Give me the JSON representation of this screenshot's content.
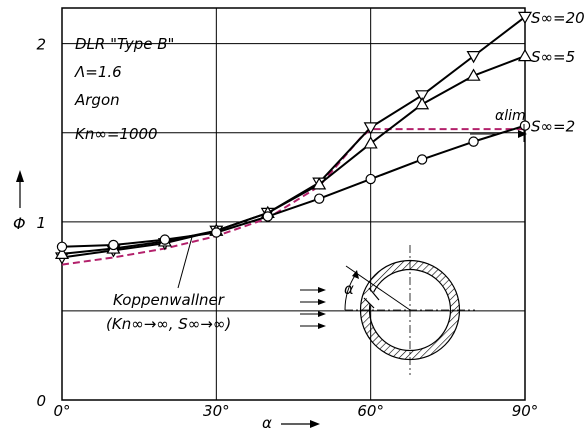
{
  "chart_data": {
    "type": "line",
    "xlabel": "α",
    "ylabel": "Φ",
    "xlim": [
      0,
      90
    ],
    "ylim": [
      0,
      2.2
    ],
    "grid": true,
    "x_ticks": [
      {
        "value": 0,
        "label": "0°"
      },
      {
        "value": 30,
        "label": "30°"
      },
      {
        "value": 60,
        "label": "60°"
      },
      {
        "value": 90,
        "label": "90°"
      }
    ],
    "y_ticks": [
      {
        "value": 0,
        "label": "0"
      },
      {
        "value": 1,
        "label": "1"
      },
      {
        "value": 2,
        "label": "2"
      }
    ],
    "annotations": {
      "model": "DLR \"Type B\"",
      "lambda": "Λ=1.6",
      "gas": "Argon",
      "knudsen": "Kn∞=1000",
      "alpha_lim": "αlim",
      "koppenwallner_line1": "Koppenwallner",
      "koppenwallner_line2": "(Kn∞→∞, S∞→∞)",
      "inset_alpha": "α"
    },
    "series": [
      {
        "name": "S∞=20",
        "marker": "triangle-down",
        "color": "#000000",
        "x": [
          0,
          10,
          20,
          30,
          40,
          50,
          60,
          70,
          80,
          90
        ],
        "y": [
          0.8,
          0.84,
          0.88,
          0.95,
          1.05,
          1.22,
          1.53,
          1.71,
          1.93,
          2.15
        ]
      },
      {
        "name": "S∞=5",
        "marker": "triangle-up",
        "color": "#000000",
        "x": [
          0,
          10,
          20,
          30,
          40,
          50,
          60,
          70,
          80,
          90
        ],
        "y": [
          0.82,
          0.85,
          0.89,
          0.95,
          1.05,
          1.21,
          1.44,
          1.66,
          1.82,
          1.93
        ]
      },
      {
        "name": "S∞=2",
        "marker": "circle",
        "color": "#000000",
        "x": [
          0,
          10,
          20,
          30,
          40,
          50,
          60,
          70,
          80,
          90
        ],
        "y": [
          0.86,
          0.87,
          0.9,
          0.94,
          1.03,
          1.13,
          1.24,
          1.35,
          1.45,
          1.54
        ]
      },
      {
        "name": "Koppenwallner",
        "marker": "none",
        "dashed": true,
        "color": "#b3206b",
        "x": [
          0,
          10,
          20,
          30,
          40,
          50,
          58,
          60,
          70,
          80,
          90
        ],
        "y": [
          0.76,
          0.8,
          0.85,
          0.92,
          1.02,
          1.2,
          1.47,
          1.52,
          1.52,
          1.52,
          1.52
        ]
      }
    ]
  }
}
